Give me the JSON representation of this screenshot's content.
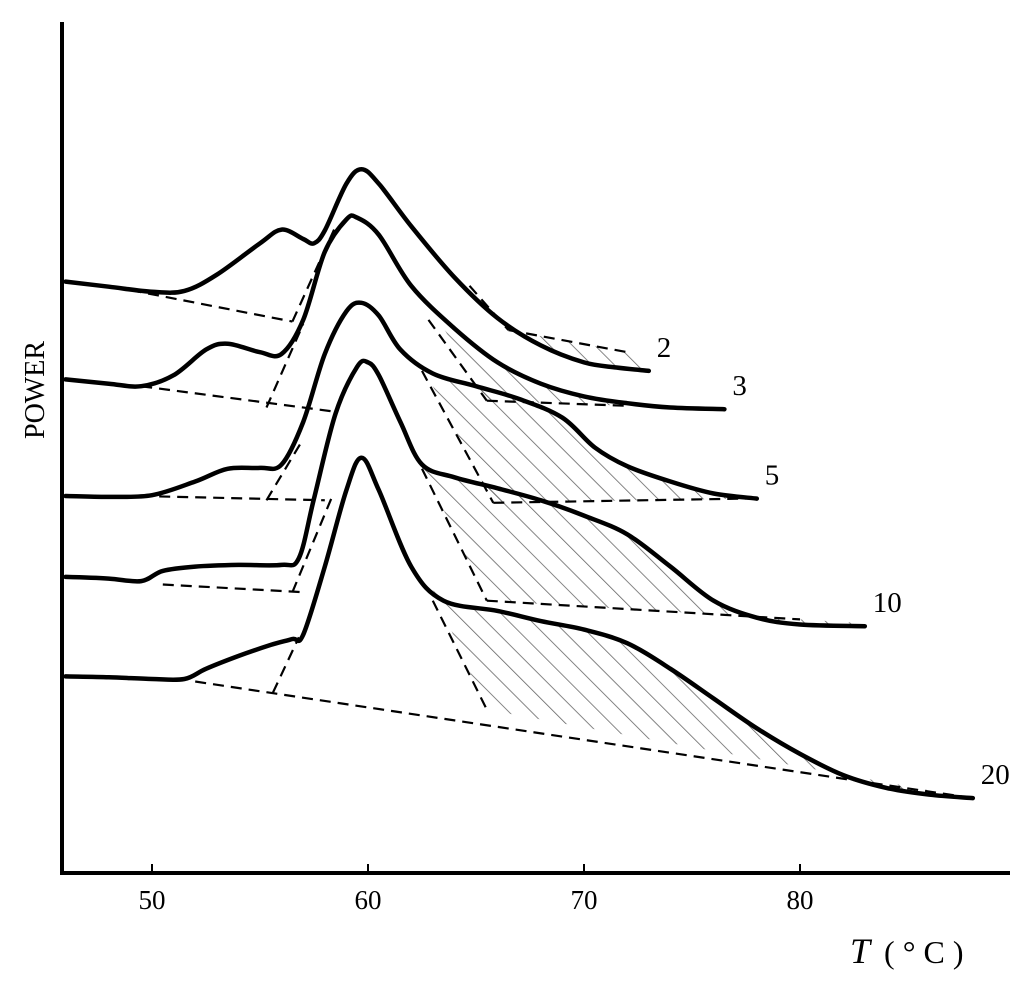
{
  "chart_data": {
    "type": "line",
    "title": "",
    "xlabel": {
      "symbol": "T",
      "unit": "( ° C )"
    },
    "ylabel": "POWER",
    "xlim": [
      46,
      88
    ],
    "x_ticks": [
      50,
      60,
      70,
      80
    ],
    "y_ticks": [],
    "grid": false,
    "legend": "labels at curve ends",
    "hatching": "diagonal hatch between tangent line and baseline on the high-temperature side of each curve",
    "series": [
      {
        "name": "2",
        "points": [
          [
            46,
            0.695
          ],
          [
            48,
            0.689
          ],
          [
            50,
            0.683
          ],
          [
            51.5,
            0.684
          ],
          [
            53,
            0.703
          ],
          [
            55,
            0.74
          ],
          [
            56,
            0.756
          ],
          [
            57,
            0.745
          ],
          [
            57.5,
            0.74
          ],
          [
            58,
            0.755
          ],
          [
            59,
            0.81
          ],
          [
            59.7,
            0.827
          ],
          [
            60.5,
            0.81
          ],
          [
            62,
            0.76
          ],
          [
            64,
            0.7
          ],
          [
            66,
            0.652
          ],
          [
            68,
            0.62
          ],
          [
            70,
            0.6
          ],
          [
            71.5,
            0.594
          ],
          [
            73,
            0.59
          ]
        ],
        "baseline": [
          [
            49,
            0.685
          ],
          [
            56.5,
            0.648
          ]
        ],
        "tangents": [
          [
            [
              56.5,
              0.648
            ],
            [
              58.5,
              0.76
            ]
          ],
          [
            [
              64.7,
              0.69
            ],
            [
              66.5,
              0.638
            ]
          ]
        ],
        "baseline_right": [
          [
            66.5,
            0.638
          ],
          [
            72,
            0.612
          ]
        ]
      },
      {
        "name": "3",
        "points": [
          [
            46,
            0.58
          ],
          [
            48,
            0.575
          ],
          [
            49.5,
            0.572
          ],
          [
            51,
            0.585
          ],
          [
            52.5,
            0.615
          ],
          [
            53.5,
            0.622
          ],
          [
            55,
            0.612
          ],
          [
            56,
            0.61
          ],
          [
            57,
            0.65
          ],
          [
            58,
            0.73
          ],
          [
            59,
            0.768
          ],
          [
            59.5,
            0.77
          ],
          [
            60.5,
            0.75
          ],
          [
            62,
            0.69
          ],
          [
            64,
            0.64
          ],
          [
            66,
            0.6
          ],
          [
            68,
            0.575
          ],
          [
            70,
            0.56
          ],
          [
            72,
            0.552
          ],
          [
            74,
            0.547
          ],
          [
            76.5,
            0.545
          ]
        ],
        "baseline": [
          [
            49.5,
            0.572
          ],
          [
            58.5,
            0.542
          ]
        ],
        "tangents": [
          [
            [
              55.3,
              0.547
            ],
            [
              57,
              0.645
            ]
          ],
          [
            [
              62.8,
              0.65
            ],
            [
              65.5,
              0.555
            ]
          ]
        ],
        "baseline_right": [
          [
            65.5,
            0.555
          ],
          [
            72,
            0.549
          ]
        ]
      },
      {
        "name": "5",
        "points": [
          [
            46,
            0.443
          ],
          [
            48,
            0.442
          ],
          [
            50,
            0.444
          ],
          [
            52,
            0.46
          ],
          [
            53.5,
            0.475
          ],
          [
            55,
            0.476
          ],
          [
            56,
            0.48
          ],
          [
            57,
            0.53
          ],
          [
            58,
            0.61
          ],
          [
            59,
            0.66
          ],
          [
            59.7,
            0.67
          ],
          [
            60.5,
            0.655
          ],
          [
            61.5,
            0.615
          ],
          [
            63,
            0.587
          ],
          [
            65,
            0.572
          ],
          [
            67,
            0.557
          ],
          [
            69,
            0.535
          ],
          [
            70.5,
            0.5
          ],
          [
            72,
            0.478
          ],
          [
            74,
            0.46
          ],
          [
            76,
            0.446
          ],
          [
            78,
            0.44
          ]
        ],
        "baseline": [
          [
            49.5,
            0.443
          ],
          [
            58,
            0.438
          ]
        ],
        "tangents": [
          [
            [
              55.3,
              0.438
            ],
            [
              57,
              0.51
            ]
          ],
          [
            [
              62.5,
              0.59
            ],
            [
              65.8,
              0.435
            ]
          ]
        ],
        "baseline_right": [
          [
            65.8,
            0.435
          ],
          [
            77.5,
            0.44
          ]
        ]
      },
      {
        "name": "10",
        "points": [
          [
            46,
            0.348
          ],
          [
            48,
            0.346
          ],
          [
            49.5,
            0.343
          ],
          [
            50.5,
            0.355
          ],
          [
            52,
            0.36
          ],
          [
            54,
            0.362
          ],
          [
            56,
            0.362
          ],
          [
            56.8,
            0.37
          ],
          [
            57.5,
            0.44
          ],
          [
            58.5,
            0.54
          ],
          [
            59.5,
            0.595
          ],
          [
            60,
            0.6
          ],
          [
            60.5,
            0.585
          ],
          [
            61.5,
            0.53
          ],
          [
            62.5,
            0.48
          ],
          [
            64,
            0.465
          ],
          [
            66,
            0.452
          ],
          [
            68,
            0.438
          ],
          [
            70,
            0.42
          ],
          [
            72,
            0.398
          ],
          [
            74,
            0.36
          ],
          [
            76,
            0.32
          ],
          [
            78,
            0.3
          ],
          [
            80,
            0.292
          ],
          [
            83,
            0.29
          ]
        ],
        "baseline": [
          [
            50.5,
            0.339
          ],
          [
            57,
            0.33
          ]
        ],
        "tangents": [
          [
            [
              56.5,
              0.33
            ],
            [
              58.3,
              0.44
            ]
          ],
          [
            [
              62.5,
              0.475
            ],
            [
              65.5,
              0.32
            ]
          ]
        ],
        "baseline_right": [
          [
            65.5,
            0.32
          ],
          [
            80,
            0.298
          ]
        ]
      },
      {
        "name": "20",
        "points": [
          [
            46,
            0.231
          ],
          [
            48,
            0.23
          ],
          [
            50,
            0.228
          ],
          [
            51.5,
            0.228
          ],
          [
            52.5,
            0.24
          ],
          [
            54,
            0.255
          ],
          [
            55.5,
            0.268
          ],
          [
            56.5,
            0.275
          ],
          [
            57,
            0.28
          ],
          [
            58,
            0.36
          ],
          [
            59,
            0.45
          ],
          [
            59.7,
            0.488
          ],
          [
            60.5,
            0.45
          ],
          [
            62,
            0.36
          ],
          [
            63.5,
            0.32
          ],
          [
            66,
            0.308
          ],
          [
            68,
            0.296
          ],
          [
            70,
            0.286
          ],
          [
            72,
            0.27
          ],
          [
            74,
            0.24
          ],
          [
            76,
            0.205
          ],
          [
            78,
            0.17
          ],
          [
            80,
            0.14
          ],
          [
            82,
            0.115
          ],
          [
            84,
            0.1
          ],
          [
            86,
            0.092
          ],
          [
            88,
            0.088
          ]
        ],
        "baseline": [
          [
            52,
            0.225
          ],
          [
            88,
            0.088
          ]
        ],
        "tangents": [
          [
            [
              55.6,
              0.212
            ],
            [
              56.8,
              0.277
            ]
          ],
          [
            [
              63,
              0.32
            ],
            [
              65.5,
              0.192
            ]
          ]
        ],
        "baseline_right": []
      }
    ]
  }
}
